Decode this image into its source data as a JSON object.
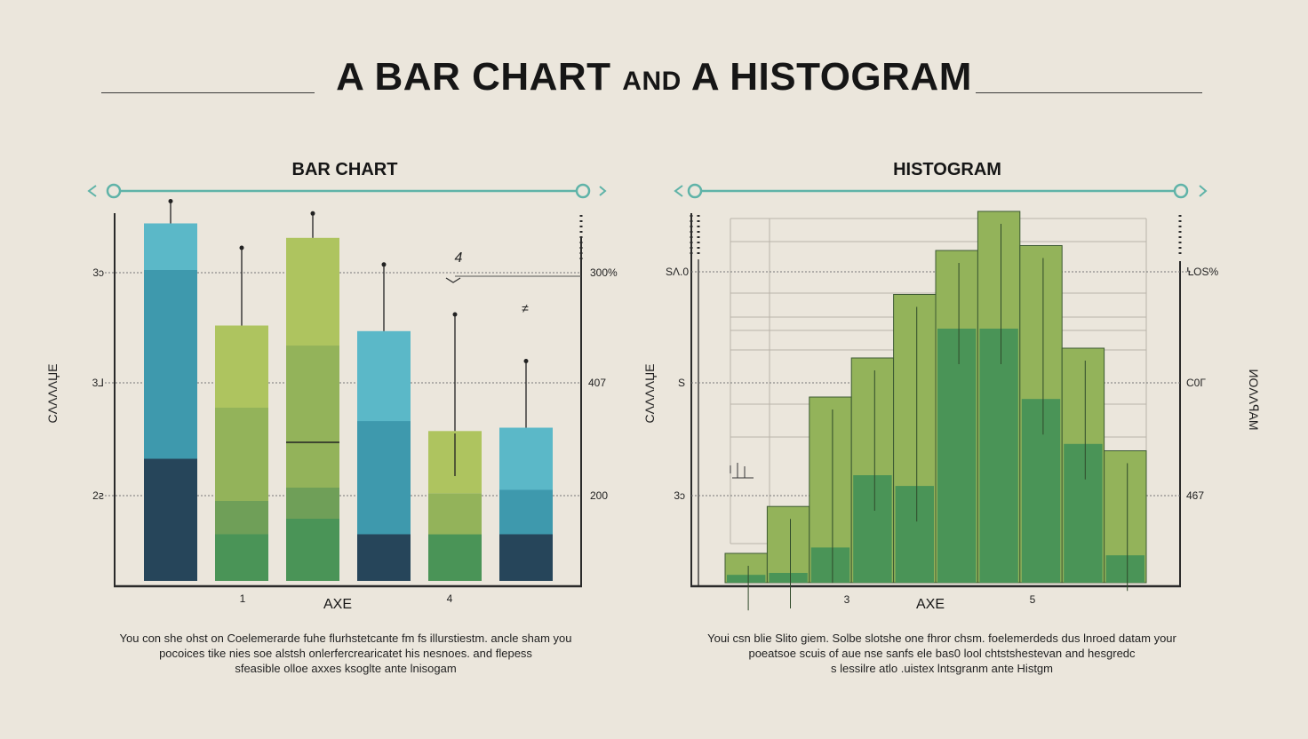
{
  "page": {
    "title_part1": "A BAR CHART",
    "title_part2": "AND",
    "title_part3": "A HISTOGRAM"
  },
  "colors": {
    "background": "#ebe6dc",
    "teal_light": "#5bb8c8",
    "teal": "#3e99ad",
    "navy": "#26455a",
    "green_light": "#aec45f",
    "green": "#93b35a",
    "green_mid": "#6f9f58",
    "green_dark": "#4a9457",
    "axis_accent": "#5fb3a8"
  },
  "chart_data": [
    {
      "type": "bar",
      "title": "BAR CHART",
      "xlabel": "AXE",
      "ylabel": "CΛΛΛΛЏΕ",
      "x_ticks": [
        "1",
        "4"
      ],
      "y_ticks_left": [
        "3ↄ",
        "3⅃",
        "2ꙅ"
      ],
      "y_ticks_right": [
        "300%",
        "407",
        "200"
      ],
      "annotations": [
        "4",
        "≠"
      ],
      "description": [
        "You con she ohst on Coelemerarde fuhe flurhstetcante fm fs illurstiestm. ancle sham you",
        "pocoices tike nies soe alstsh onlerfercrearicatet his nesnoes. and flepess",
        "sfeasible olloe axxes ksoglte ante lnisogam"
      ],
      "bars": [
        {
          "segments": [
            {
              "color": "navy",
              "value": 1.1
            },
            {
              "color": "teal",
              "value": 1.7
            },
            {
              "color": "teal_light",
              "value": 0.42
            }
          ],
          "whisker": 0.2
        },
        {
          "segments": [
            {
              "color": "green_dark",
              "value": 0.42
            },
            {
              "color": "green_mid",
              "value": 0.3
            },
            {
              "color": "green",
              "value": 0.84
            },
            {
              "color": "green_light",
              "value": 0.74
            }
          ],
          "whisker": 0.7
        },
        {
          "segments": [
            {
              "color": "green_dark",
              "value": 0.56
            },
            {
              "color": "green_mid",
              "value": 0.28
            },
            {
              "color": "green",
              "value": 1.28
            },
            {
              "color": "green_light",
              "value": 0.97
            }
          ],
          "whisker": 0.22
        },
        {
          "segments": [
            {
              "color": "navy",
              "value": 0.42
            },
            {
              "color": "teal",
              "value": 1.02
            },
            {
              "color": "teal_light",
              "value": 0.81
            }
          ],
          "whisker": 0.6
        },
        {
          "segments": [
            {
              "color": "green_dark",
              "value": 0.42
            },
            {
              "color": "green",
              "value": 0.37
            },
            {
              "color": "green_light",
              "value": 0.56
            }
          ],
          "whisker": 1.05
        },
        {
          "segments": [
            {
              "color": "navy",
              "value": 0.42
            },
            {
              "color": "teal",
              "value": 0.4
            },
            {
              "color": "teal_light",
              "value": 0.56
            }
          ],
          "whisker": 0.6
        }
      ]
    },
    {
      "type": "bar",
      "title": "HISTOGRAM",
      "xlabel": "AXE",
      "ylabel": "CΛΛΛΛЏΕ",
      "ylabel_right": "ИОΛΛꟼΑΜ",
      "x_ticks": [
        "3",
        "5"
      ],
      "y_ticks_left": [
        "SΛ.0",
        "S",
        "3ↄ"
      ],
      "y_ticks_right": [
        "ꝆOS%",
        "C0Г",
        "467"
      ],
      "description": [
        "Youi csn blie Slito giem. Solbe slotshe one fhror chsm. foelemerdeds dus lnroed datam your",
        "poeatsoe scuis of aue nse sanfs ele bas0 lool chtstshestevan and hesgredc",
        "s lessilre atlo .uistex lntsgranm ante Histgm"
      ],
      "bins": [
        {
          "outer": 0.3,
          "inner": 0.08
        },
        {
          "outer": 0.78,
          "inner": 0.1
        },
        {
          "outer": 1.9,
          "inner": 0.36
        },
        {
          "outer": 2.3,
          "inner": 1.1
        },
        {
          "outer": 2.95,
          "inner": 0.99
        },
        {
          "outer": 3.4,
          "inner": 2.6
        },
        {
          "outer": 3.8,
          "inner": 2.6
        },
        {
          "outer": 3.45,
          "inner": 1.88
        },
        {
          "outer": 2.4,
          "inner": 1.42
        },
        {
          "outer": 1.35,
          "inner": 0.28
        }
      ]
    }
  ]
}
